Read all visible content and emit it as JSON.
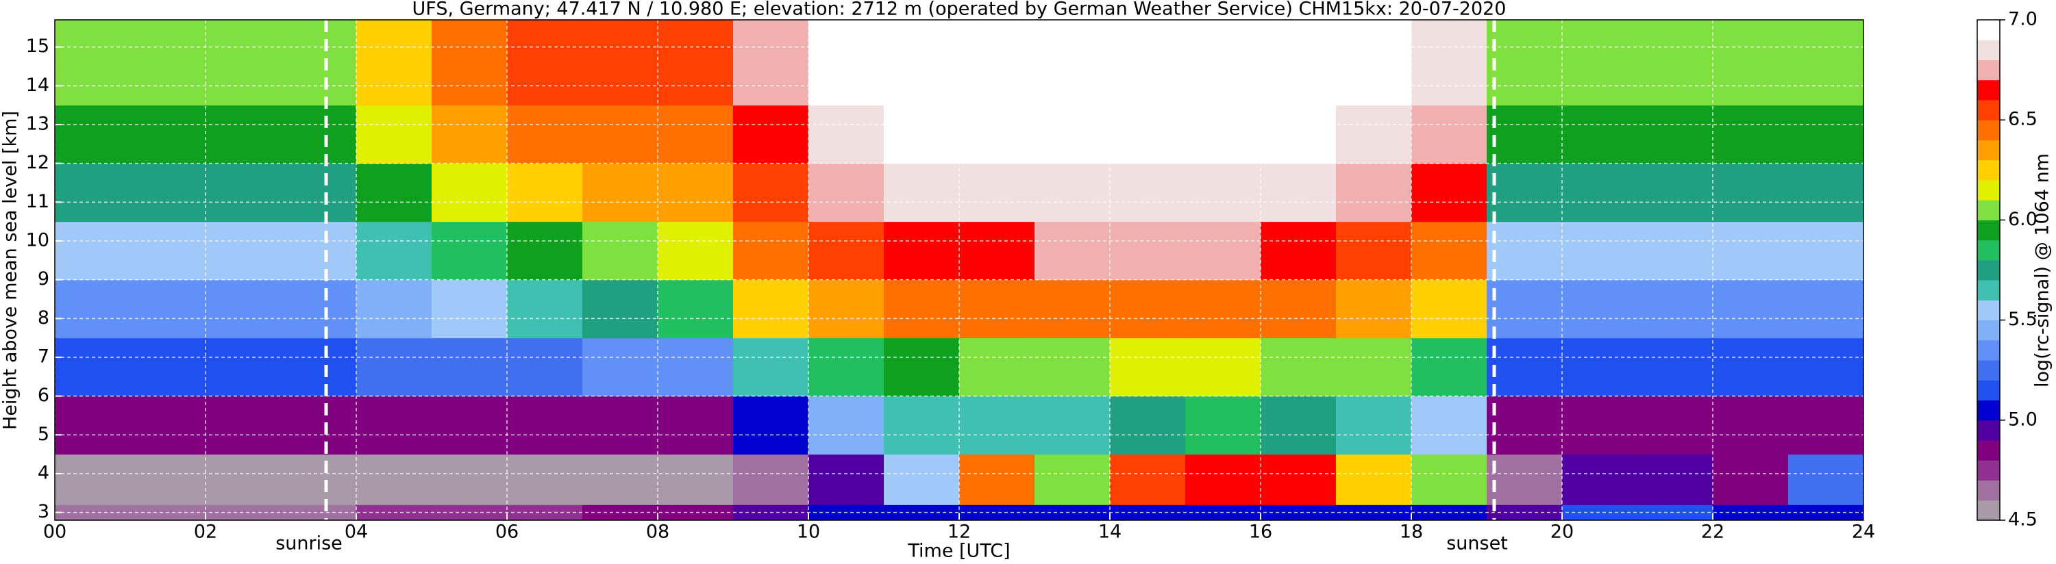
{
  "chart_data": {
    "type": "heatmap",
    "title": "UFS, Germany; 47.417 N / 10.980 E; elevation: 2712 m  (operated by German Weather Service)    CHM15kx: 20-07-2020",
    "x_label": "Time [UTC]",
    "y_label": "Height above mean sea level [km]",
    "x_bins": [
      0,
      1,
      2,
      3,
      4,
      5,
      6,
      7,
      8,
      9,
      10,
      11,
      12,
      13,
      14,
      15,
      16,
      17,
      18,
      19,
      20,
      21,
      22,
      23,
      24
    ],
    "y_bins": [
      2.8,
      3.2,
      4.5,
      6,
      7.5,
      9,
      10.5,
      12,
      13.5,
      15.7
    ],
    "z": [
      [
        4.6,
        4.6,
        4.6,
        4.6,
        4.7,
        4.7,
        4.7,
        4.8,
        4.8,
        4.9,
        5.0,
        5.0,
        5.0,
        5.0,
        5.0,
        5.0,
        5.0,
        5.0,
        5.0,
        4.9,
        5.1,
        5.1,
        5.0,
        5.0
      ],
      [
        4.5,
        4.5,
        4.5,
        4.5,
        4.5,
        4.5,
        4.5,
        4.5,
        4.5,
        4.6,
        4.9,
        5.5,
        6.4,
        6.0,
        6.5,
        6.6,
        6.6,
        6.2,
        6.0,
        4.6,
        4.9,
        4.9,
        4.8,
        5.2
      ],
      [
        4.8,
        4.8,
        4.8,
        4.8,
        4.8,
        4.8,
        4.8,
        4.8,
        4.8,
        5.0,
        5.4,
        5.6,
        5.6,
        5.6,
        5.7,
        5.8,
        5.7,
        5.6,
        5.5,
        4.8,
        4.8,
        4.8,
        4.8,
        4.8
      ],
      [
        5.1,
        5.1,
        5.1,
        5.1,
        5.2,
        5.2,
        5.2,
        5.3,
        5.3,
        5.6,
        5.8,
        5.9,
        6.0,
        6.0,
        6.1,
        6.1,
        6.0,
        6.0,
        5.8,
        5.1,
        5.1,
        5.1,
        5.1,
        5.1
      ],
      [
        5.3,
        5.3,
        5.3,
        5.3,
        5.4,
        5.5,
        5.6,
        5.7,
        5.8,
        6.2,
        6.3,
        6.4,
        6.4,
        6.4,
        6.4,
        6.4,
        6.4,
        6.3,
        6.2,
        5.3,
        5.3,
        5.3,
        5.3,
        5.3
      ],
      [
        5.5,
        5.5,
        5.5,
        5.5,
        5.6,
        5.8,
        5.9,
        6.0,
        6.1,
        6.4,
        6.5,
        6.6,
        6.6,
        6.7,
        6.7,
        6.7,
        6.6,
        6.5,
        6.4,
        5.5,
        5.5,
        5.5,
        5.5,
        5.5
      ],
      [
        5.7,
        5.7,
        5.7,
        5.7,
        5.9,
        6.1,
        6.2,
        6.3,
        6.3,
        6.5,
        6.7,
        6.8,
        6.8,
        6.8,
        6.8,
        6.8,
        6.8,
        6.7,
        6.6,
        5.7,
        5.7,
        5.7,
        5.7,
        5.7
      ],
      [
        5.9,
        5.9,
        5.9,
        5.9,
        6.1,
        6.3,
        6.4,
        6.4,
        6.4,
        6.6,
        6.8,
        6.9,
        6.9,
        6.9,
        6.9,
        6.9,
        6.9,
        6.8,
        6.7,
        5.9,
        5.9,
        5.9,
        5.9,
        5.9
      ],
      [
        6.0,
        6.0,
        6.0,
        6.0,
        6.2,
        6.4,
        6.5,
        6.5,
        6.5,
        6.7,
        6.9,
        6.9,
        6.9,
        6.9,
        6.9,
        6.9,
        6.9,
        6.9,
        6.8,
        6.0,
        6.0,
        6.0,
        6.0,
        6.0
      ]
    ],
    "xlim": [
      0,
      24
    ],
    "xticks": [
      {
        "value": 0,
        "label": "00"
      },
      {
        "value": 2,
        "label": "02"
      },
      {
        "value": 4,
        "label": "04"
      },
      {
        "value": 6,
        "label": "06"
      },
      {
        "value": 8,
        "label": "08"
      },
      10,
      12,
      14,
      16,
      18,
      20,
      22,
      24
    ],
    "ylim": [
      2.8,
      15.7
    ],
    "yticks": [
      3,
      4,
      5,
      6,
      7,
      8,
      9,
      10,
      11,
      12,
      13,
      14,
      15
    ],
    "grid": true,
    "annotations": [
      {
        "text": "sunrise",
        "x": 3.6
      },
      {
        "text": "sunset",
        "x": 19.1
      }
    ],
    "colorbar": {
      "label": "log(rc-signal) @ 1064 nm",
      "lim": [
        4.5,
        7.0
      ],
      "ticks": [
        {
          "value": 4.5,
          "label": "4.5"
        },
        {
          "value": 5.0,
          "label": "5.0"
        },
        {
          "value": 5.5,
          "label": "5.5"
        },
        {
          "value": 6.0,
          "label": "6.0"
        },
        {
          "value": 6.5,
          "label": "6.5"
        },
        {
          "value": 7.0,
          "label": "7.0"
        }
      ],
      "colors": [
        "#a89aa8",
        "#a070a0",
        "#903090",
        "#800080",
        "#5000a0",
        "#0000d0",
        "#2050f0",
        "#4070f0",
        "#6090f8",
        "#80b0f8",
        "#a0c8f8",
        "#40c0b0",
        "#20a080",
        "#20c060",
        "#10a020",
        "#80e040",
        "#e0f000",
        "#ffd000",
        "#ffa000",
        "#ff7000",
        "#ff4000",
        "#ff0000",
        "#f0b0b0",
        "#f0e0e0",
        "#ffffff"
      ]
    }
  }
}
